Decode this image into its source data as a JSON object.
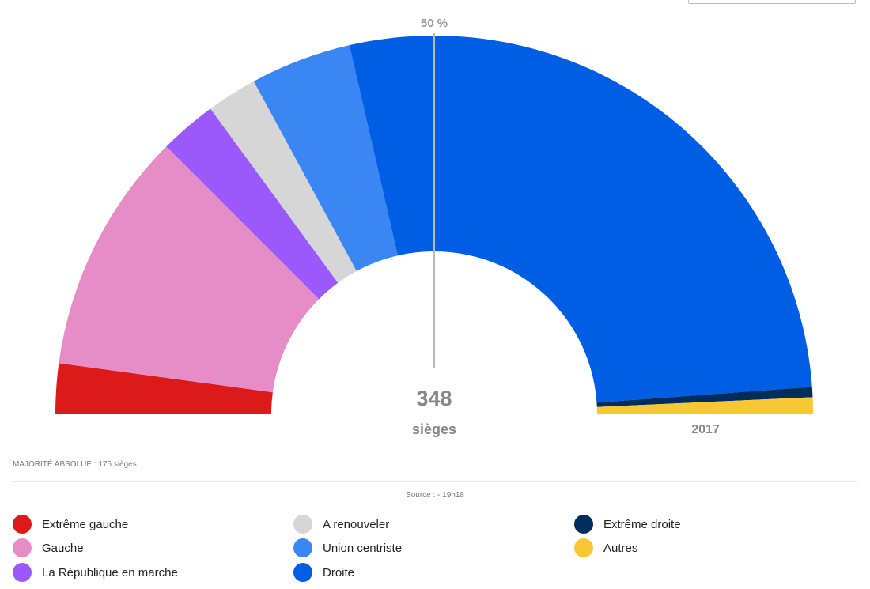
{
  "chart_data": {
    "type": "hemicycle",
    "total_seats": 348,
    "total_unit": "sièges",
    "majority_marker_label": "50 %",
    "year_label": "2017",
    "majority_note": "MAJORITÉ ABSOLUE : 175 sièges",
    "source_note": "Source : - 19h18",
    "series": [
      {
        "name": "Extrême gauche",
        "seats": 15,
        "color": "#dd1a1a"
      },
      {
        "name": "Gauche",
        "seats": 72,
        "color": "#e68dc7"
      },
      {
        "name": "La République en marche",
        "seats": 17,
        "color": "#9b59fb"
      },
      {
        "name": "A renouveler",
        "seats": 15,
        "color": "#d6d6d6"
      },
      {
        "name": "Union centriste",
        "seats": 30,
        "color": "#3a86f3"
      },
      {
        "name": "Droite",
        "seats": 191,
        "color": "#005ee5"
      },
      {
        "name": "Extrême droite",
        "seats": 3,
        "color": "#002d5c"
      },
      {
        "name": "Autres",
        "seats": 5,
        "color": "#f7c834"
      }
    ]
  },
  "legend": [
    {
      "label": "Extrême gauche",
      "color": "#dd1a1a"
    },
    {
      "label": "Gauche",
      "color": "#e68dc7"
    },
    {
      "label": "La République en marche",
      "color": "#9b59fb"
    },
    {
      "label": "A renouveler",
      "color": "#d6d6d6"
    },
    {
      "label": "Union centriste",
      "color": "#3a86f3"
    },
    {
      "label": "Droite",
      "color": "#005ee5"
    },
    {
      "label": "Extrême droite",
      "color": "#002d5c"
    },
    {
      "label": "Autres",
      "color": "#f7c834"
    }
  ]
}
